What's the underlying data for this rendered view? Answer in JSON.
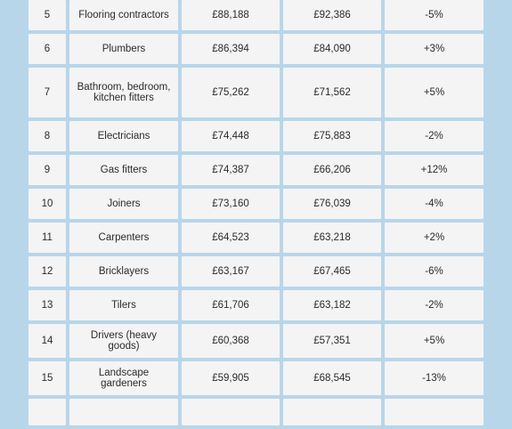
{
  "table": {
    "rows": [
      {
        "rank": "5",
        "trade": "Flooring contractors",
        "value_a": "£88,188",
        "value_b": "£92,386",
        "change": "-5%",
        "h": 34
      },
      {
        "rank": "6",
        "trade": "Plumbers",
        "value_a": "£86,394",
        "value_b": "£84,090",
        "change": "+3%",
        "h": 34
      },
      {
        "rank": "7",
        "trade": "Bathroom, bedroom, kitchen fitters",
        "value_a": "£75,262",
        "value_b": "£71,562",
        "change": "+5%",
        "h": 56
      },
      {
        "rank": "8",
        "trade": "Electricians",
        "value_a": "£74,448",
        "value_b": "£75,883",
        "change": "-2%",
        "h": 34
      },
      {
        "rank": "9",
        "trade": "Gas fitters",
        "value_a": "£74,387",
        "value_b": "£66,206",
        "change": "+12%",
        "h": 34
      },
      {
        "rank": "10",
        "trade": "Joiners",
        "value_a": "£73,160",
        "value_b": "£76,039",
        "change": "-4%",
        "h": 34
      },
      {
        "rank": "11",
        "trade": "Carpenters",
        "value_a": "£64,523",
        "value_b": "£63,218",
        "change": "+2%",
        "h": 34
      },
      {
        "rank": "12",
        "trade": "Bricklayers",
        "value_a": "£63,167",
        "value_b": "£67,465",
        "change": "-6%",
        "h": 34
      },
      {
        "rank": "13",
        "trade": "Tilers",
        "value_a": "£61,706",
        "value_b": "£63,182",
        "change": "-2%",
        "h": 34
      },
      {
        "rank": "14",
        "trade": "Drivers (heavy goods)",
        "value_a": "£60,368",
        "value_b": "£57,351",
        "change": "+5%",
        "h": 38
      },
      {
        "rank": "15",
        "trade": "Landscape gardeners",
        "value_a": "£59,905",
        "value_b": "£68,545",
        "change": "-13%",
        "h": 38
      },
      {
        "rank": "",
        "trade": "",
        "value_a": "",
        "value_b": "",
        "change": "",
        "h": 30
      }
    ]
  }
}
